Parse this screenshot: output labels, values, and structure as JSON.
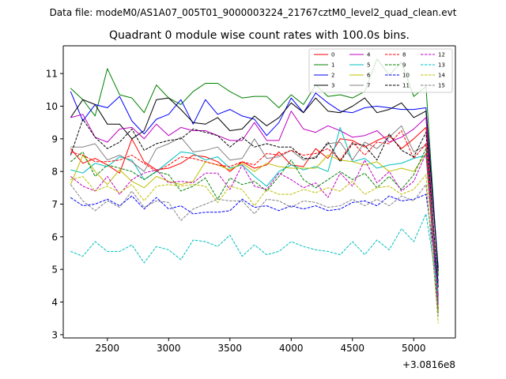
{
  "header": {
    "data_file_line": "Data file: modeM0/AS1A07_005T01_9000003224_21767cztM0_level2_quad_clean.evt"
  },
  "chart_data": {
    "type": "line",
    "title": "Quadrant 0 module wise count rates with 100.0s bins.",
    "xlabel": "",
    "ylabel": "",
    "x_offset_label": "+3.0816e8",
    "xlim": [
      2140,
      5340
    ],
    "ylim": [
      2.9,
      11.85
    ],
    "xticks": [
      2500,
      3000,
      3500,
      4000,
      4500,
      5000
    ],
    "yticks": [
      3,
      4,
      5,
      6,
      7,
      8,
      9,
      10,
      11
    ],
    "grid": false,
    "legend_position": "top-right",
    "x": [
      2200,
      2300,
      2400,
      2500,
      2600,
      2700,
      2800,
      2900,
      3000,
      3100,
      3200,
      3300,
      3400,
      3500,
      3600,
      3700,
      3800,
      3900,
      4000,
      4100,
      4200,
      4300,
      4400,
      4500,
      4600,
      4700,
      4800,
      4900,
      5000,
      5100,
      5200
    ],
    "series": [
      {
        "name": "0",
        "color": "#ff0000",
        "dash": "solid",
        "values": [
          8.7,
          8.25,
          8.4,
          8.2,
          7.95,
          9.0,
          8.3,
          8.05,
          8.1,
          8.25,
          8.5,
          8.45,
          8.3,
          8.0,
          8.3,
          8.1,
          8.2,
          8.6,
          8.2,
          8.15,
          8.7,
          8.4,
          9.0,
          8.95,
          8.75,
          8.95,
          9.1,
          8.7,
          9.0,
          9.35,
          4.1
        ]
      },
      {
        "name": "1",
        "color": "#008000",
        "dash": "solid",
        "values": [
          10.55,
          10.2,
          9.7,
          11.15,
          10.35,
          10.25,
          9.8,
          10.65,
          10.25,
          10.05,
          10.45,
          10.7,
          10.7,
          10.45,
          10.25,
          10.3,
          10.3,
          9.95,
          10.35,
          10.05,
          10.65,
          10.3,
          10.35,
          10.25,
          10.45,
          11.45,
          10.95,
          11.35,
          10.3,
          10.6,
          4.8
        ]
      },
      {
        "name": "2",
        "color": "#0000ff",
        "dash": "solid",
        "values": [
          10.45,
          9.55,
          10.05,
          9.95,
          10.3,
          9.55,
          9.15,
          9.6,
          9.75,
          10.2,
          9.45,
          10.2,
          9.75,
          9.9,
          9.7,
          9.6,
          9.1,
          9.5,
          10.25,
          9.8,
          10.4,
          10.1,
          9.85,
          9.8,
          9.95,
          10.0,
          9.95,
          9.9,
          9.9,
          9.95,
          5.05
        ]
      },
      {
        "name": "3",
        "color": "#000000",
        "dash": "solid",
        "values": [
          9.65,
          10.2,
          10.05,
          9.45,
          9.45,
          9.0,
          9.25,
          10.2,
          10.25,
          9.9,
          9.5,
          9.45,
          9.65,
          9.25,
          9.3,
          9.7,
          9.4,
          9.65,
          10.1,
          9.8,
          10.25,
          9.85,
          9.8,
          10.0,
          10.25,
          9.8,
          9.9,
          10.1,
          9.65,
          9.85,
          4.95
        ]
      },
      {
        "name": "4",
        "color": "#c000c0",
        "dash": "solid",
        "values": [
          9.65,
          9.75,
          9.05,
          8.9,
          9.3,
          9.35,
          9.0,
          9.45,
          9.1,
          9.35,
          9.25,
          9.25,
          9.1,
          8.95,
          8.95,
          9.5,
          8.95,
          8.95,
          9.85,
          9.3,
          9.2,
          9.4,
          9.25,
          9.05,
          9.1,
          9.25,
          8.9,
          9.05,
          9.3,
          9.65,
          4.2
        ]
      },
      {
        "name": "5",
        "color": "#00bfbf",
        "dash": "solid",
        "values": [
          8.05,
          7.95,
          8.25,
          8.15,
          8.45,
          8.35,
          7.75,
          8.0,
          8.3,
          8.6,
          8.55,
          8.35,
          8.45,
          8.1,
          8.2,
          7.85,
          7.55,
          8.0,
          8.2,
          8.05,
          8.15,
          8.0,
          9.35,
          8.3,
          8.4,
          8.1,
          8.2,
          8.25,
          8.4,
          8.5,
          4.0
        ]
      },
      {
        "name": "6",
        "color": "#bfbf00",
        "dash": "solid",
        "values": [
          7.6,
          8.5,
          8.0,
          7.6,
          8.05,
          7.7,
          7.5,
          7.85,
          7.7,
          7.6,
          7.7,
          8.3,
          8.2,
          8.05,
          8.25,
          8.0,
          8.25,
          8.15,
          8.1,
          8.1,
          8.1,
          8.5,
          8.35,
          8.3,
          8.2,
          8.3,
          8.0,
          8.1,
          8.0,
          8.55,
          3.7
        ]
      },
      {
        "name": "7",
        "color": "#808080",
        "dash": "solid",
        "values": [
          8.75,
          8.75,
          8.85,
          8.35,
          8.5,
          8.3,
          8.0,
          8.7,
          8.85,
          9.05,
          8.6,
          8.65,
          8.75,
          8.35,
          8.4,
          9.0,
          8.4,
          8.45,
          8.65,
          8.35,
          8.45,
          8.85,
          8.9,
          8.35,
          8.9,
          8.7,
          9.05,
          9.4,
          8.6,
          8.8,
          4.55
        ]
      },
      {
        "name": "8",
        "color": "#ff0000",
        "dash": "dashed",
        "values": [
          8.6,
          8.5,
          8.3,
          8.3,
          8.35,
          8.5,
          8.25,
          8.0,
          8.2,
          8.45,
          8.4,
          8.3,
          8.2,
          8.15,
          8.3,
          8.2,
          8.55,
          8.5,
          8.65,
          8.5,
          8.55,
          8.7,
          8.35,
          8.9,
          8.5,
          8.9,
          8.85,
          9.25,
          8.4,
          8.85,
          3.8
        ]
      },
      {
        "name": "9",
        "color": "#008000",
        "dash": "dashed",
        "values": [
          8.3,
          8.6,
          7.85,
          8.2,
          8.1,
          8.0,
          7.75,
          8.0,
          7.9,
          7.4,
          7.55,
          7.8,
          7.15,
          7.8,
          7.6,
          7.7,
          7.4,
          7.85,
          8.35,
          7.75,
          7.5,
          7.75,
          8.0,
          7.75,
          7.95,
          7.5,
          7.85,
          7.45,
          7.9,
          8.7,
          3.65
        ]
      },
      {
        "name": "10",
        "color": "#0000ff",
        "dash": "dashed",
        "values": [
          7.2,
          6.95,
          7.0,
          7.15,
          6.95,
          7.25,
          6.85,
          7.2,
          6.85,
          6.95,
          6.7,
          6.75,
          6.75,
          6.8,
          7.15,
          6.9,
          6.95,
          6.8,
          6.95,
          6.85,
          6.95,
          6.8,
          6.85,
          7.05,
          7.1,
          6.95,
          7.25,
          7.1,
          7.15,
          7.3,
          4.65
        ]
      },
      {
        "name": "11",
        "color": "#000000",
        "dash": "dashed",
        "values": [
          8.5,
          9.6,
          9.05,
          8.7,
          8.9,
          9.3,
          8.65,
          8.85,
          8.95,
          9.0,
          9.3,
          9.2,
          9.1,
          8.75,
          9.05,
          8.75,
          8.85,
          8.75,
          8.75,
          8.4,
          8.4,
          8.9,
          8.3,
          8.85,
          8.8,
          8.35,
          9.15,
          8.65,
          8.45,
          9.2,
          4.45
        ]
      },
      {
        "name": "12",
        "color": "#c000c0",
        "dash": "dashed",
        "values": [
          7.85,
          7.55,
          7.4,
          7.85,
          7.3,
          7.75,
          7.95,
          8.05,
          7.65,
          7.7,
          7.65,
          7.95,
          7.95,
          7.45,
          8.2,
          7.55,
          7.45,
          7.95,
          7.75,
          7.5,
          7.65,
          7.2,
          7.95,
          7.55,
          8.35,
          7.65,
          8.0,
          7.4,
          7.7,
          8.55,
          3.9
        ]
      },
      {
        "name": "13",
        "color": "#00bfbf",
        "dash": "dashed",
        "values": [
          5.55,
          5.4,
          5.85,
          5.55,
          5.55,
          5.75,
          5.2,
          5.7,
          5.6,
          5.3,
          5.9,
          5.85,
          5.7,
          6.05,
          5.4,
          5.75,
          5.45,
          5.55,
          5.85,
          5.7,
          5.6,
          5.55,
          5.45,
          5.85,
          5.45,
          5.9,
          5.6,
          6.25,
          5.85,
          6.7,
          4.3
        ]
      },
      {
        "name": "14",
        "color": "#bfbf00",
        "dash": "dashed",
        "values": [
          7.75,
          7.85,
          7.4,
          7.55,
          7.35,
          7.6,
          7.1,
          7.55,
          7.6,
          7.55,
          7.6,
          7.55,
          7.05,
          7.55,
          7.45,
          6.95,
          7.45,
          7.3,
          7.3,
          7.45,
          7.35,
          7.5,
          7.4,
          7.7,
          7.3,
          7.5,
          7.55,
          7.3,
          7.45,
          7.9,
          3.35
        ]
      },
      {
        "name": "15",
        "color": "#808080",
        "dash": "dashed",
        "values": [
          7.6,
          7.1,
          6.8,
          7.1,
          6.9,
          7.4,
          6.9,
          7.1,
          7.05,
          6.5,
          6.85,
          7.0,
          7.15,
          7.1,
          7.1,
          6.7,
          7.15,
          7.1,
          6.9,
          7.1,
          7.05,
          6.9,
          6.95,
          7.15,
          6.95,
          7.15,
          6.95,
          7.25,
          7.1,
          7.6,
          3.55
        ]
      }
    ]
  }
}
